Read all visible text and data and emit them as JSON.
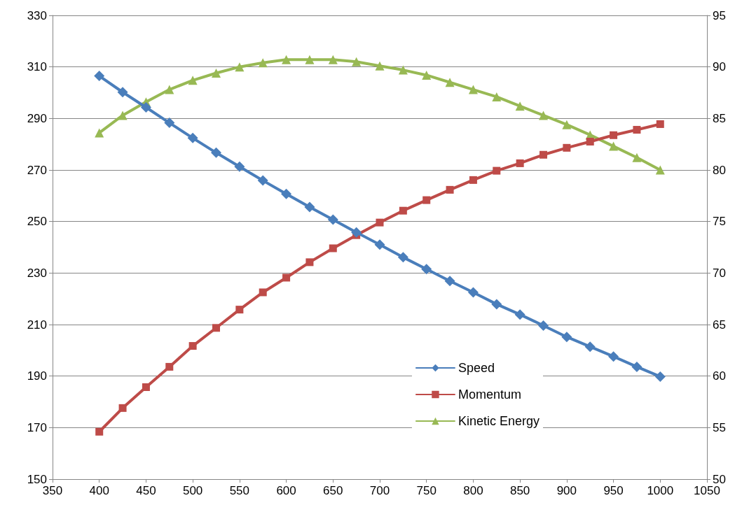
{
  "chart_data": {
    "type": "line",
    "x": [
      400,
      425,
      450,
      475,
      500,
      525,
      550,
      575,
      600,
      625,
      650,
      675,
      700,
      725,
      750,
      775,
      800,
      825,
      850,
      875,
      900,
      925,
      950,
      975,
      1000
    ],
    "series": [
      {
        "name": "Speed",
        "color": "#4a7ebb",
        "marker": "diamond",
        "values": [
          306.5,
          300.2,
          294.3,
          288.3,
          282.4,
          276.7,
          271.3,
          265.9,
          260.7,
          255.6,
          250.7,
          245.8,
          241.0,
          236.1,
          231.5,
          226.9,
          222.5,
          217.9,
          213.9,
          209.6,
          205.2,
          201.4,
          197.6,
          193.6,
          189.8
        ]
      },
      {
        "name": "Momentum",
        "color": "#be4b48",
        "marker": "square",
        "values": [
          168.4,
          177.6,
          185.7,
          193.6,
          201.7,
          208.7,
          215.8,
          222.5,
          228.2,
          234.2,
          239.6,
          244.7,
          249.6,
          254.2,
          258.3,
          262.3,
          266.1,
          269.7,
          272.6,
          275.9,
          278.6,
          281.0,
          283.5,
          285.6,
          287.8
        ]
      },
      {
        "name": "Kinetic Energy",
        "color": "#98b954",
        "marker": "triangle",
        "axis": "y2",
        "values": [
          83.6,
          85.3,
          86.6,
          87.8,
          88.7,
          89.4,
          90.0,
          90.4,
          90.7,
          90.7,
          90.7,
          90.5,
          90.1,
          89.7,
          89.2,
          88.5,
          87.8,
          87.1,
          86.2,
          85.3,
          84.4,
          83.4,
          82.3,
          81.2,
          80.0
        ]
      }
    ],
    "xlim": [
      350,
      1050
    ],
    "xticks": [
      350,
      400,
      450,
      500,
      550,
      600,
      650,
      700,
      750,
      800,
      850,
      900,
      950,
      1000,
      1050
    ],
    "ylim": [
      150,
      330
    ],
    "yticks": [
      150,
      170,
      190,
      210,
      230,
      250,
      270,
      290,
      310,
      330
    ],
    "y2lim": [
      50,
      95
    ],
    "y2ticks": [
      50,
      55,
      60,
      65,
      70,
      75,
      80,
      85,
      90,
      95
    ],
    "grid": "y",
    "legend": "bottom right",
    "line_style": "solid"
  }
}
